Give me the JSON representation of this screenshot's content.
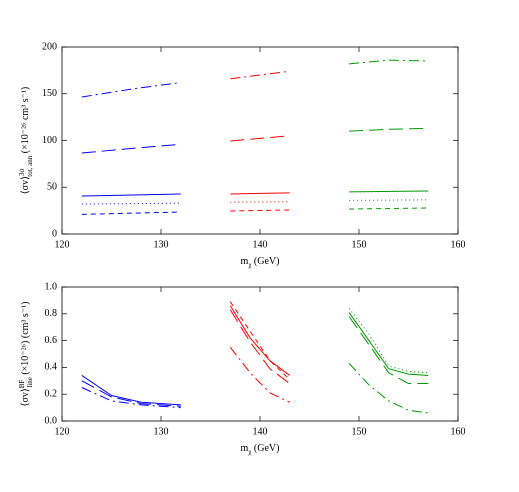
{
  "chart_data": [
    {
      "type": "line",
      "x_label": {
        "main": "m",
        "sub": "χ",
        "rest": " (GeV)"
      },
      "y_label": {
        "main": "⟨σv⟩",
        "sup": "3σ",
        "sub": "tot, ann",
        "rest": " (×10⁻²⁶ cm³ s⁻¹)"
      },
      "xlim": [
        120,
        160
      ],
      "xticks": [
        120,
        130,
        140,
        150,
        160
      ],
      "ylim": [
        0,
        200
      ],
      "yticks": [
        0,
        50,
        100,
        150,
        200
      ],
      "series": [
        {
          "color": "#0000ff",
          "dash": "dashdot",
          "x": [
            122,
            127,
            132
          ],
          "values": [
            146.5,
            155,
            162
          ]
        },
        {
          "color": "#0000ff",
          "dash": "longdash",
          "x": [
            122,
            127,
            132
          ],
          "values": [
            86.6,
            91.5,
            96
          ]
        },
        {
          "color": "#0000ff",
          "dash": "solid",
          "x": [
            122,
            132
          ],
          "values": [
            40.6,
            42.8
          ]
        },
        {
          "color": "#0000ff",
          "dash": "dotted",
          "x": [
            122,
            132
          ],
          "values": [
            32,
            33
          ]
        },
        {
          "color": "#0000ff",
          "dash": "dashed",
          "x": [
            122,
            132
          ],
          "values": [
            21,
            23.5
          ]
        },
        {
          "color": "#ff0000",
          "dash": "dashdot",
          "x": [
            137,
            140,
            143
          ],
          "values": [
            166,
            170,
            174
          ]
        },
        {
          "color": "#ff0000",
          "dash": "longdash",
          "x": [
            137,
            143
          ],
          "values": [
            99.5,
            105
          ]
        },
        {
          "color": "#ff0000",
          "dash": "solid",
          "x": [
            137,
            143
          ],
          "values": [
            42.8,
            44
          ]
        },
        {
          "color": "#ff0000",
          "dash": "dotted",
          "x": [
            137,
            143
          ],
          "values": [
            34,
            34.5
          ]
        },
        {
          "color": "#ff0000",
          "dash": "dashed",
          "x": [
            137,
            143
          ],
          "values": [
            24.6,
            25.7
          ]
        },
        {
          "color": "#009900",
          "dash": "dashdot",
          "x": [
            149,
            153,
            157
          ],
          "values": [
            182,
            186,
            185
          ]
        },
        {
          "color": "#009900",
          "dash": "longdash",
          "x": [
            149,
            153,
            157
          ],
          "values": [
            110,
            112,
            113
          ]
        },
        {
          "color": "#009900",
          "dash": "solid",
          "x": [
            149,
            157
          ],
          "values": [
            45,
            46
          ]
        },
        {
          "color": "#009900",
          "dash": "dotted",
          "x": [
            149,
            157
          ],
          "values": [
            36,
            36.5
          ]
        },
        {
          "color": "#009900",
          "dash": "dashed",
          "x": [
            149,
            157
          ],
          "values": [
            26.7,
            27.8
          ]
        }
      ]
    },
    {
      "type": "line",
      "x_label": {
        "main": "m",
        "sub": "χ",
        "rest": " (GeV)"
      },
      "y_label": {
        "main": "⟨σv⟩",
        "sup": "BF",
        "sub": "line",
        "rest": " (×10⁻²⁶) (cm³ s⁻¹)"
      },
      "xlim": [
        120,
        160
      ],
      "xticks": [
        120,
        130,
        140,
        150,
        160
      ],
      "ylim": [
        0,
        1
      ],
      "yticks": [
        {
          "value": 0,
          "label": "0.0"
        },
        0.2,
        0.4,
        0.6,
        0.8,
        {
          "value": 1,
          "label": "1.0"
        }
      ],
      "series": [
        {
          "color": "#0000ff",
          "dash": "solid",
          "x": [
            122,
            125,
            128,
            132
          ],
          "values": [
            0.34,
            0.19,
            0.14,
            0.12
          ]
        },
        {
          "color": "#0000ff",
          "dash": "longdash",
          "x": [
            122,
            125,
            128,
            132
          ],
          "values": [
            0.3,
            0.18,
            0.13,
            0.11
          ]
        },
        {
          "color": "#0000ff",
          "dash": "dashdot",
          "x": [
            122,
            125,
            128,
            132
          ],
          "values": [
            0.25,
            0.15,
            0.12,
            0.1
          ]
        },
        {
          "color": "#ff0000",
          "dash": "dashed",
          "x": [
            137,
            139,
            141,
            143
          ],
          "values": [
            0.89,
            0.67,
            0.45,
            0.31
          ]
        },
        {
          "color": "#ff0000",
          "dash": "solid",
          "x": [
            137,
            139,
            141,
            143
          ],
          "values": [
            0.86,
            0.62,
            0.45,
            0.34
          ]
        },
        {
          "color": "#ff0000",
          "dash": "longdash",
          "x": [
            137,
            139,
            141,
            143
          ],
          "values": [
            0.83,
            0.59,
            0.39,
            0.28
          ]
        },
        {
          "color": "#ff0000",
          "dash": "dashdot",
          "x": [
            137,
            139,
            141,
            143
          ],
          "values": [
            0.55,
            0.36,
            0.21,
            0.14
          ]
        },
        {
          "color": "#009900",
          "dash": "dotted",
          "x": [
            149,
            151,
            153,
            155,
            157
          ],
          "values": [
            0.84,
            0.65,
            0.41,
            0.37,
            0.36
          ]
        },
        {
          "color": "#009900",
          "dash": "solid",
          "x": [
            149,
            151,
            153,
            155,
            157
          ],
          "values": [
            0.81,
            0.6,
            0.39,
            0.35,
            0.34
          ]
        },
        {
          "color": "#009900",
          "dash": "longdash",
          "x": [
            149,
            151,
            153,
            155,
            157
          ],
          "values": [
            0.78,
            0.57,
            0.36,
            0.28,
            0.28
          ]
        },
        {
          "color": "#009900",
          "dash": "dashdot",
          "x": [
            149,
            151,
            153,
            155,
            157
          ],
          "values": [
            0.43,
            0.27,
            0.15,
            0.08,
            0.06
          ]
        }
      ]
    }
  ]
}
